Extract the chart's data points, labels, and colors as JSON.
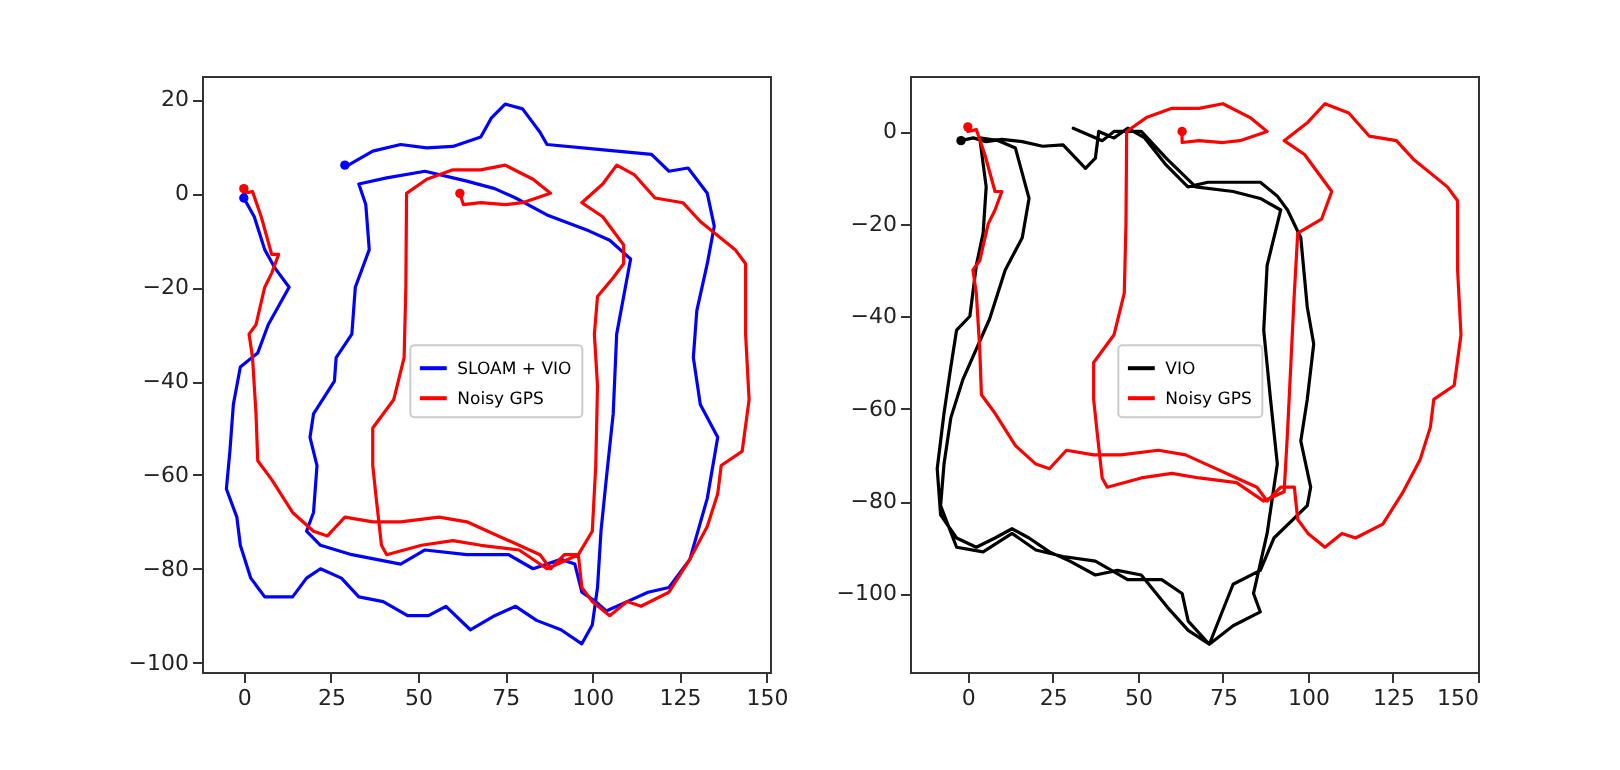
{
  "chart_data": [
    {
      "type": "line",
      "legend": "center",
      "xlim": [
        -12,
        151
      ],
      "ylim": [
        -102,
        25
      ],
      "xticks": [
        0,
        25,
        50,
        75,
        100,
        125,
        150
      ],
      "yticks": [
        -100,
        -80,
        -60,
        -40,
        -20,
        0,
        20
      ],
      "series": [
        {
          "name": "SLOAM + VIO",
          "color": "#0000ff",
          "x": [
            0,
            3,
            6,
            9,
            13,
            10,
            7,
            4,
            -1,
            -3,
            -4,
            -5,
            -2,
            -1,
            2,
            6,
            14,
            18,
            22,
            28,
            33,
            40,
            47,
            53,
            58,
            65,
            72,
            78,
            84,
            91,
            97,
            100,
            101.5,
            102.5,
            104,
            106,
            107,
            111,
            105,
            99,
            87,
            78,
            72,
            64,
            52,
            41,
            33,
            35,
            36,
            32,
            31,
            26.5,
            26,
            20,
            19,
            21,
            20,
            18,
            22,
            31,
            45,
            52,
            64,
            76,
            83,
            91,
            95,
            97,
            101,
            104,
            110,
            116,
            122,
            128,
            133,
            136,
            131,
            129,
            130,
            133,
            135,
            133,
            127.5,
            122,
            117,
            102.5,
            87,
            85,
            80,
            75,
            71,
            68,
            60,
            52.5,
            45,
            37,
            30
          ],
          "values": [
            -1,
            -5,
            -12,
            -16,
            -20,
            -24,
            -28,
            -34,
            -37,
            -45,
            -55,
            -63,
            -69,
            -75,
            -82,
            -86,
            -86,
            -82,
            -80,
            -82,
            -86,
            -87,
            -90,
            -90,
            -88,
            -93,
            -90,
            -88,
            -91,
            -93,
            -96,
            -92,
            -84,
            -72,
            -61,
            -47,
            -30,
            -14,
            -10,
            -8,
            -4.6,
            -1,
            1,
            2.6,
            4.7,
            3.3,
            2,
            -2.4,
            -12,
            -20,
            -30,
            -35,
            -40,
            -47,
            -52,
            -58,
            -68,
            -72,
            -75,
            -77,
            -79,
            -76,
            -77,
            -77,
            -80,
            -78,
            -79,
            -85,
            -87,
            -89,
            -87,
            -85,
            -84,
            -78,
            -65,
            -52,
            -45,
            -35,
            -25,
            -15,
            -7,
            0,
            5.4,
            4.7,
            8.3,
            9.3,
            10.4,
            13,
            18,
            19,
            16,
            12,
            10,
            9.7,
            10.4,
            9,
            6
          ]
        },
        {
          "name": "Noisy GPS",
          "color": "#ff0000",
          "x": [
            0,
            2.5,
            5,
            8,
            10,
            8,
            6,
            3.5,
            1.5,
            2.5,
            3.5,
            4,
            8,
            14,
            20,
            24,
            29,
            37,
            45,
            56,
            64,
            70,
            79,
            85,
            88,
            92,
            96,
            97,
            100,
            105,
            110,
            114,
            122,
            128,
            133,
            136,
            137,
            143,
            145,
            144,
            144,
            141,
            131,
            126,
            118,
            112,
            107,
            103,
            97,
            103,
            109,
            109,
            106,
            101.5,
            100.6,
            101.5,
            101,
            100,
            96,
            87,
            79,
            68,
            60,
            51,
            41,
            39.5,
            38,
            37,
            37,
            43,
            46,
            46.5,
            46.7,
            52.5,
            60,
            68,
            75,
            83,
            88,
            80,
            75,
            68,
            63,
            62
          ],
          "values": [
            0,
            0.4,
            -5,
            -13,
            -13,
            -17,
            -20,
            -28,
            -30,
            -35,
            -47,
            -57,
            -61,
            -68,
            -72,
            -73,
            -69,
            -70,
            -70,
            -69,
            -70,
            -72,
            -75,
            -77,
            -80,
            -77,
            -77,
            -84,
            -87,
            -90,
            -87,
            -88,
            -85,
            -78,
            -71,
            -64,
            -58,
            -55,
            -44,
            -30,
            -15,
            -12,
            -6,
            -2,
            -1,
            4,
            6,
            2,
            -2,
            -5,
            -11,
            -15,
            -18,
            -22,
            -30,
            -41,
            -58,
            -72,
            -77,
            -80,
            -76,
            -75,
            -74,
            -75,
            -77,
            -75,
            -65,
            -58,
            -50,
            -44,
            -35,
            -20,
            0,
            3,
            5,
            5,
            6,
            3,
            0,
            -2,
            -2.4,
            -2,
            -2.4,
            0
          ]
        },
        {
          "type": "scatter",
          "marker": "circle",
          "color": "#0000ff",
          "x": [
            0,
            29
          ],
          "values": [
            -1,
            6
          ]
        },
        {
          "type": "scatter",
          "marker": "circle",
          "color": "#ff0000",
          "x": [
            0,
            62
          ],
          "values": [
            1,
            0
          ]
        }
      ]
    },
    {
      "type": "line",
      "legend": "center",
      "xlim": [
        -17,
        150
      ],
      "ylim": [
        -117,
        12
      ],
      "xticks": [
        0,
        25,
        50,
        75,
        100,
        125,
        150
      ],
      "yticks": [
        -100,
        -80,
        -60,
        -40,
        -20,
        0
      ],
      "series": [
        {
          "name": "VIO",
          "color": "#000000",
          "x": [
            -2,
            1.6,
            5.4,
            10,
            16,
            22,
            28,
            34.6,
            37.5,
            38.5,
            43,
            47,
            52,
            58,
            64.7,
            70.6,
            86,
            91,
            94,
            97.9,
            99.8,
            101.7,
            99.8,
            97.9,
            100.8,
            99.8,
            90,
            86,
            78,
            71,
            64.8,
            58.7,
            51,
            44,
            37.5,
            30,
            24,
            18,
            13,
            8,
            2.5,
            -3.3,
            -8,
            -9,
            -7,
            -5,
            -3.3,
            0.6,
            2.5,
            4.5,
            5.4,
            3.5,
            9,
            14,
            18,
            16,
            11,
            6.4,
            -1.4,
            -5,
            -7,
            -8,
            -3.3,
            4.5,
            13,
            20,
            28,
            37.5,
            47,
            57,
            63,
            64.8,
            71,
            78,
            86,
            84,
            88,
            91,
            89,
            87,
            88,
            92,
            86,
            78,
            67,
            58.6,
            51,
            43,
            39.5,
            31
          ],
          "values": [
            -2,
            -1.4,
            -2.2,
            -1.7,
            -2.2,
            -3.2,
            -2.9,
            -8,
            -5.8,
            0,
            -1.4,
            0.7,
            -1.4,
            -7,
            -12,
            -11,
            -11,
            -14,
            -17,
            -23,
            -38,
            -46,
            -58,
            -67,
            -77,
            -81,
            -88,
            -95,
            -98,
            -111,
            -108,
            -103,
            -96,
            -95,
            -96,
            -93,
            -91,
            -88,
            -86,
            -88,
            -90,
            -88,
            -83,
            -73,
            -61,
            -51,
            -43,
            -40,
            -29,
            -22,
            -12,
            -1.4,
            -2,
            -3.6,
            -14.5,
            -23,
            -30,
            -40.6,
            -53.6,
            -62,
            -72,
            -81,
            -90,
            -91,
            -87,
            -90.6,
            -92,
            -93,
            -97,
            -97,
            -100,
            -106,
            -111,
            -107,
            -104,
            -100,
            -87,
            -72,
            -58,
            -43,
            -29,
            -17,
            -14.5,
            -13,
            -12,
            -6,
            0,
            0,
            -2,
            0.7
          ]
        },
        {
          "name": "Noisy GPS",
          "color": "#ff0000",
          "x": [
            0,
            2.5,
            5,
            8,
            10,
            8,
            6,
            3.5,
            1.5,
            2.5,
            3.5,
            4,
            8,
            14,
            20,
            24,
            29,
            37,
            45,
            56,
            64,
            70,
            79,
            85,
            88,
            92,
            96,
            97,
            100,
            105,
            110,
            114,
            122,
            128,
            133,
            136,
            137,
            143,
            145,
            144,
            144,
            141,
            131,
            126,
            118,
            112,
            105,
            100,
            93,
            99,
            107,
            104,
            97,
            96,
            95,
            94,
            93,
            87,
            79,
            68,
            60,
            51,
            41,
            39.5,
            38,
            37,
            37,
            43,
            46,
            46.5,
            46.7,
            52.5,
            60,
            68,
            75,
            83,
            88,
            80,
            75,
            68,
            63,
            63
          ],
          "values": [
            0,
            0.4,
            -5,
            -13,
            -13,
            -17,
            -20,
            -28,
            -30,
            -35,
            -47,
            -57,
            -61,
            -68,
            -72,
            -73,
            -69,
            -70,
            -70,
            -69,
            -70,
            -72,
            -75,
            -77,
            -80,
            -77,
            -77,
            -84,
            -87,
            -90,
            -87,
            -88,
            -85,
            -78,
            -71,
            -64,
            -58,
            -55,
            -44,
            -30,
            -15,
            -12,
            -6,
            -2,
            -1,
            4,
            6,
            2,
            -2,
            -5,
            -13,
            -19,
            -22,
            -35,
            -50,
            -65,
            -78,
            -80,
            -76,
            -75,
            -74,
            -75,
            -77,
            -75,
            -65,
            -58,
            -50,
            -44,
            -35,
            -20,
            0,
            3,
            5,
            5,
            6,
            3,
            0,
            -2,
            -2.4,
            -2,
            -2.4,
            0
          ]
        },
        {
          "type": "scatter",
          "marker": "circle",
          "color": "#000000",
          "x": [
            -2
          ],
          "values": [
            -2
          ]
        },
        {
          "type": "scatter",
          "marker": "circle",
          "color": "#ff0000",
          "x": [
            0,
            63
          ],
          "values": [
            1,
            0
          ]
        }
      ]
    }
  ]
}
